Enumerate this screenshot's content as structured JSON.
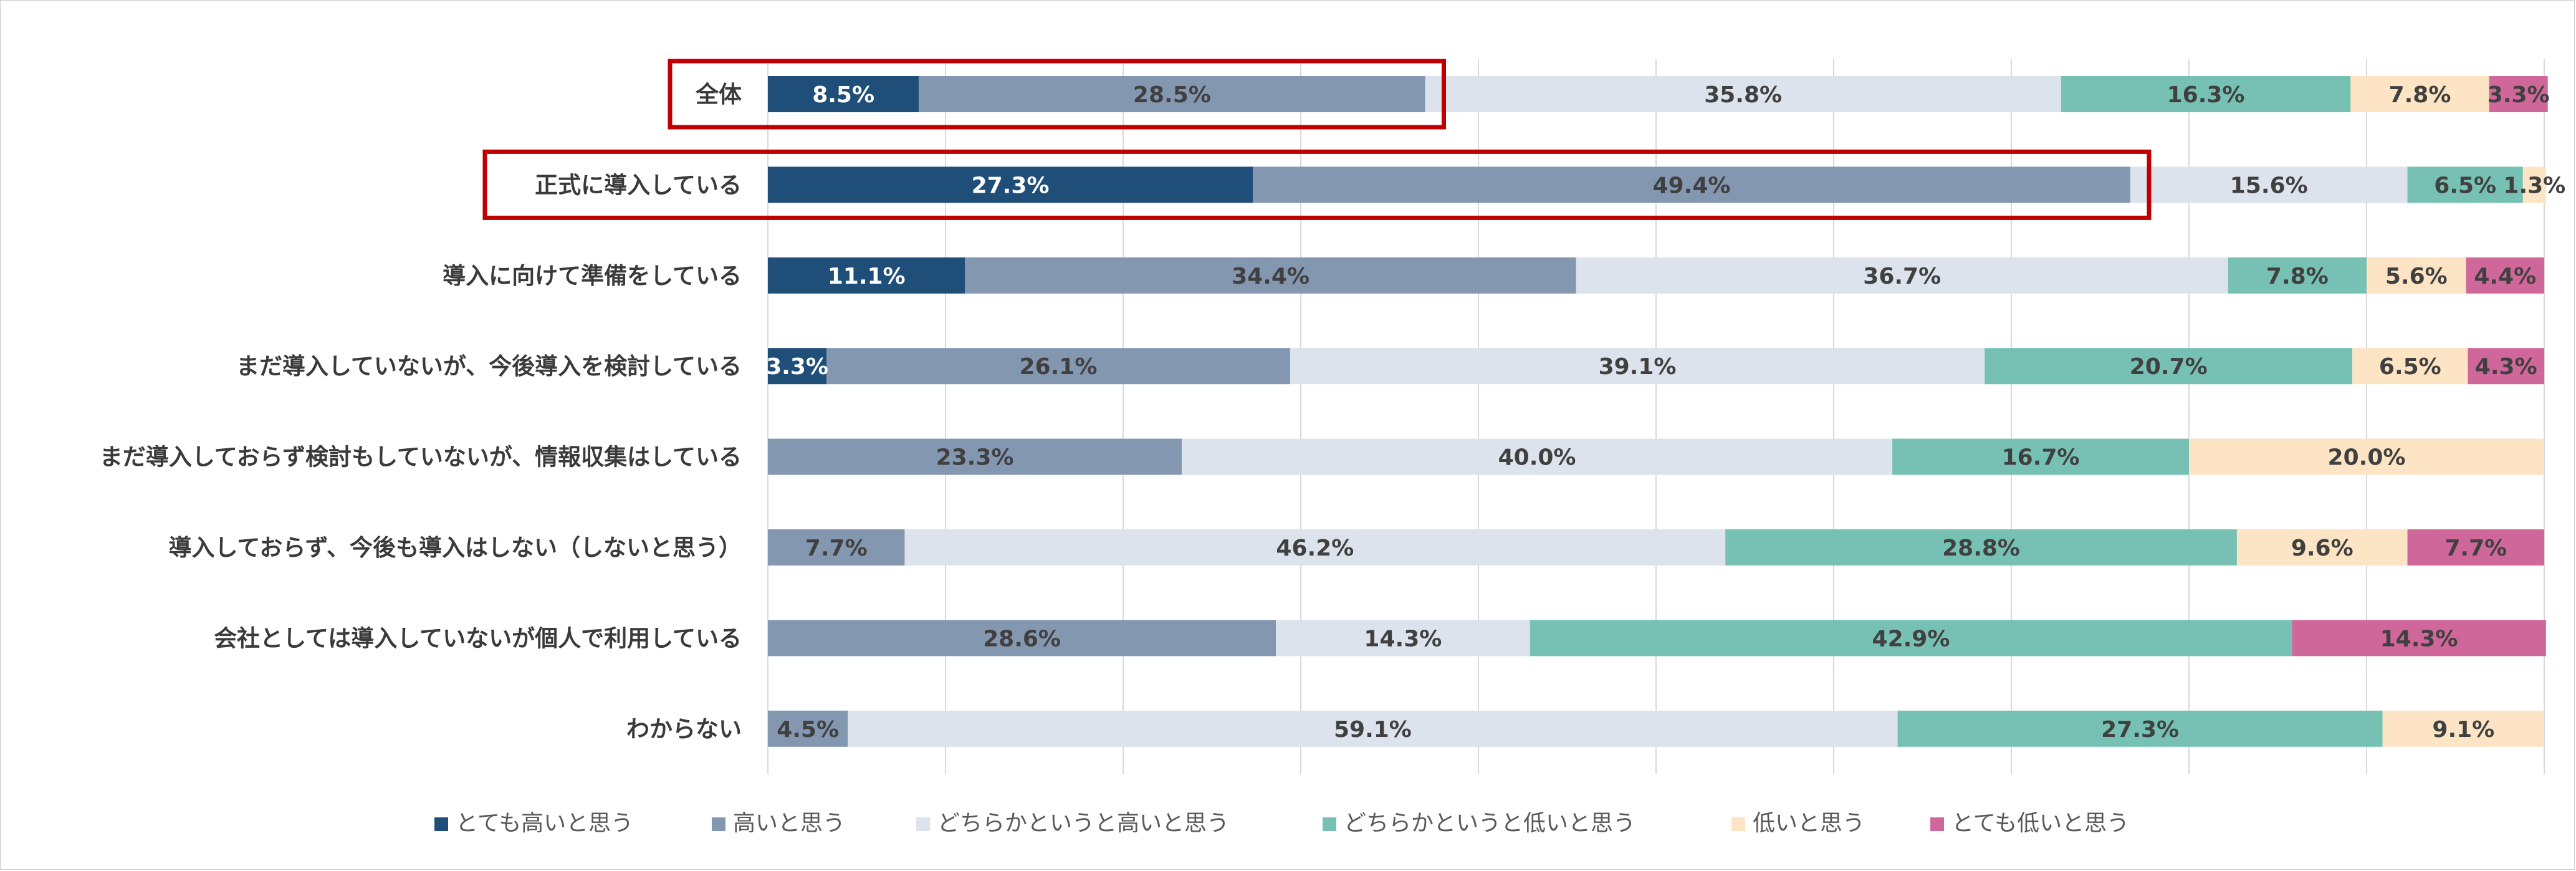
{
  "chart_data": {
    "type": "bar",
    "orientation": "horizontal",
    "stacked": true,
    "percent": true,
    "categories": [
      "全体",
      "正式に導入している",
      "導入に向けて準備をしている",
      "まだ導入していないが、今後導入を検討している",
      "まだ導入しておらず検討もしていないが、情報収集はしている",
      "導入しておらず、今後も導入はしない（しないと思う）",
      "会社としては導入していないが個人で利用している",
      "わからない"
    ],
    "series": [
      {
        "name": "とても高いと思う",
        "color": "#1f4e79",
        "values": [
          8.5,
          27.3,
          11.1,
          3.3,
          0,
          0,
          0,
          0
        ]
      },
      {
        "name": "高いと思う",
        "color": "#8497b0",
        "values": [
          28.5,
          49.4,
          34.4,
          26.1,
          23.3,
          7.7,
          28.6,
          4.5
        ]
      },
      {
        "name": "どちらかというと高いと思う",
        "color": "#dce3ed",
        "values": [
          35.8,
          15.6,
          36.7,
          39.1,
          40.0,
          46.2,
          14.3,
          59.1
        ]
      },
      {
        "name": "どちらかというと低いと思う",
        "color": "#76c1b3",
        "values": [
          16.3,
          6.5,
          7.8,
          20.7,
          16.7,
          28.8,
          42.9,
          27.3
        ]
      },
      {
        "name": "低いと思う",
        "color": "#fce4c4",
        "values": [
          7.8,
          1.3,
          5.6,
          6.5,
          20.0,
          9.6,
          0,
          9.1
        ]
      },
      {
        "name": "とても低いと思う",
        "color": "#d0679b",
        "values": [
          3.3,
          0,
          4.4,
          4.3,
          0,
          7.7,
          14.3,
          0
        ]
      }
    ],
    "data_labels": [
      [
        "8.5%",
        "28.5%",
        "35.8%",
        "16.3%",
        "7.8%",
        "3.3%"
      ],
      [
        "27.3%",
        "49.4%",
        "15.6%",
        "6.5%",
        "1.3%",
        null
      ],
      [
        "11.1%",
        "34.4%",
        "36.7%",
        "7.8%",
        "5.6%",
        "4.4%"
      ],
      [
        "3.3%",
        "26.1%",
        "39.1%",
        "20.7%",
        "6.5%",
        "4.3%"
      ],
      [
        null,
        "23.3%",
        "40.0%",
        "16.7%",
        "20.0%",
        null
      ],
      [
        null,
        "7.7%",
        "46.2%",
        "28.8%",
        "9.6%",
        "7.7%"
      ],
      [
        null,
        "28.6%",
        "14.3%",
        "42.9%",
        null,
        "14.3%"
      ],
      [
        null,
        "4.5%",
        "59.1%",
        "27.3%",
        "9.1%",
        null
      ]
    ],
    "xlim": [
      0,
      100
    ],
    "grid": true,
    "legend_position": "bottom",
    "highlight": [
      {
        "row": 0,
        "series_through": 1,
        "color": "#c00000"
      },
      {
        "row": 1,
        "series_through": 1,
        "color": "#c00000"
      }
    ]
  }
}
